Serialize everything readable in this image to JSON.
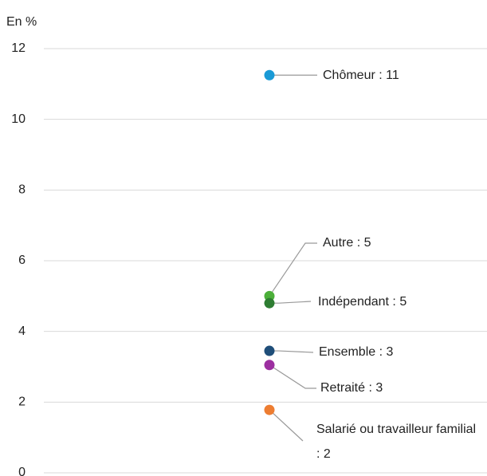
{
  "chart_data": {
    "type": "dot",
    "y_label": "En %",
    "values": [
      11.25,
      5.0,
      4.8,
      3.45,
      3.05,
      1.78
    ],
    "value_labels": [
      "Chômeur : 11",
      "Autre : 5",
      "Indépendant : 5",
      "Ensemble : 3",
      "Retraité : 3",
      "Salarié ou travailleur familial : 2"
    ],
    "colors": [
      "#1a9ad6",
      "#4caf3a",
      "#2e7d32",
      "#1f4e79",
      "#9c2fa0",
      "#ed7d31"
    ],
    "ylim": [
      0,
      12
    ],
    "yticks": [
      0,
      2,
      4,
      6,
      8,
      10,
      12
    ],
    "grid": true
  }
}
